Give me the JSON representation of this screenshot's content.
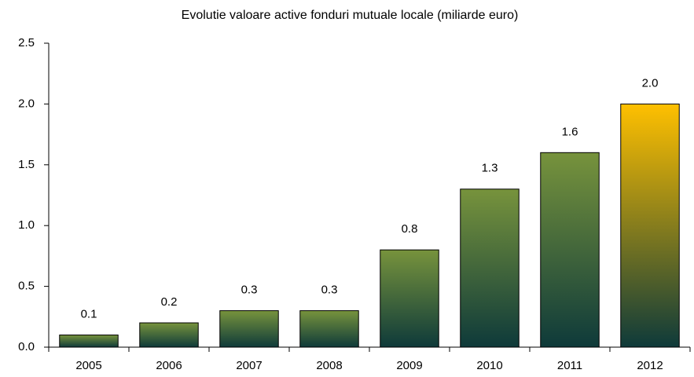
{
  "chart_data": {
    "type": "bar",
    "title": "Evolutie valoare active fonduri mutuale locale (miliarde euro)",
    "categories": [
      "2005",
      "2006",
      "2007",
      "2008",
      "2009",
      "2010",
      "2011",
      "2012"
    ],
    "values": [
      0.1,
      0.2,
      0.3,
      0.3,
      0.8,
      1.3,
      1.6,
      2.0
    ],
    "value_labels": [
      "0.1",
      "0.2",
      "0.3",
      "0.3",
      "0.8",
      "1.3",
      "1.6",
      "2.0"
    ],
    "colors": [
      "#77933c",
      "#77933c",
      "#77933c",
      "#77933c",
      "#77933c",
      "#77933c",
      "#77933c",
      "#ffc000"
    ],
    "gradient_bottom": "#0e3a3a",
    "ylim": [
      0,
      2.5
    ],
    "yticks": [
      {
        "value": 0,
        "label": "0.0"
      },
      {
        "value": 0.5,
        "label": "0.5"
      },
      {
        "value": 1,
        "label": "1.0"
      },
      {
        "value": 1.5,
        "label": "1.5"
      },
      {
        "value": 2,
        "label": "2.0"
      },
      {
        "value": 2.5,
        "label": "2.5"
      }
    ],
    "grid": false
  }
}
